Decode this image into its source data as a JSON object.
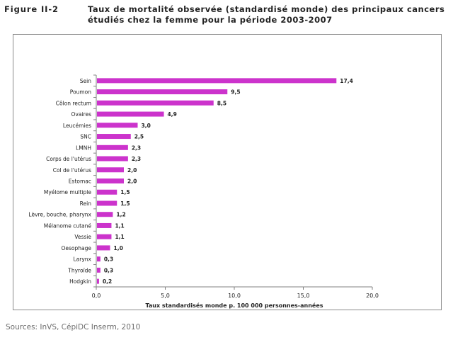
{
  "figure": {
    "label": "Figure II-2",
    "title_line1": "Taux de mortalité observée (standardisé monde) des principaux cancers",
    "title_line2": "étudiés chez la femme pour la période 2003-2007"
  },
  "source": "Sources: InVS, CépiDC Inserm, 2010",
  "colors": {
    "bar": "#cc33cc",
    "axis": "#808080",
    "text": "#222222"
  },
  "chart_data": {
    "type": "bar",
    "orientation": "horizontal",
    "categories": [
      "Sein",
      "Poumon",
      "Côlon rectum",
      "Ovaires",
      "Leucémies",
      "SNC",
      "LMNH",
      "Corps de l'utérus",
      "Col de l'utérus",
      "Estomac",
      "Myélome multiple",
      "Rein",
      "Lèvre, bouche, pharynx",
      "Mélanome cutané",
      "Vessie",
      "Oesophage",
      "Larynx",
      "Thyroïde",
      "Hodgkin"
    ],
    "values": [
      17.4,
      9.5,
      8.5,
      4.9,
      3.0,
      2.5,
      2.3,
      2.3,
      2.0,
      2.0,
      1.5,
      1.5,
      1.2,
      1.1,
      1.1,
      1.0,
      0.3,
      0.3,
      0.2
    ],
    "value_labels": [
      "17,4",
      "9,5",
      "8,5",
      "4,9",
      "3,0",
      "2,5",
      "2,3",
      "2,3",
      "2,0",
      "2,0",
      "1,5",
      "1,5",
      "1,2",
      "1,1",
      "1,1",
      "1,0",
      "0,3",
      "0,3",
      "0,2"
    ],
    "xlabel": "Taux standardisés monde  p. 100 000 personnes-années",
    "xlim": [
      0,
      20
    ],
    "xticks": [
      0,
      5,
      10,
      15,
      20
    ],
    "xtick_labels": [
      "0,0",
      "5,0",
      "10,0",
      "15,0",
      "20,0"
    ],
    "grid": false,
    "legend": "none"
  }
}
